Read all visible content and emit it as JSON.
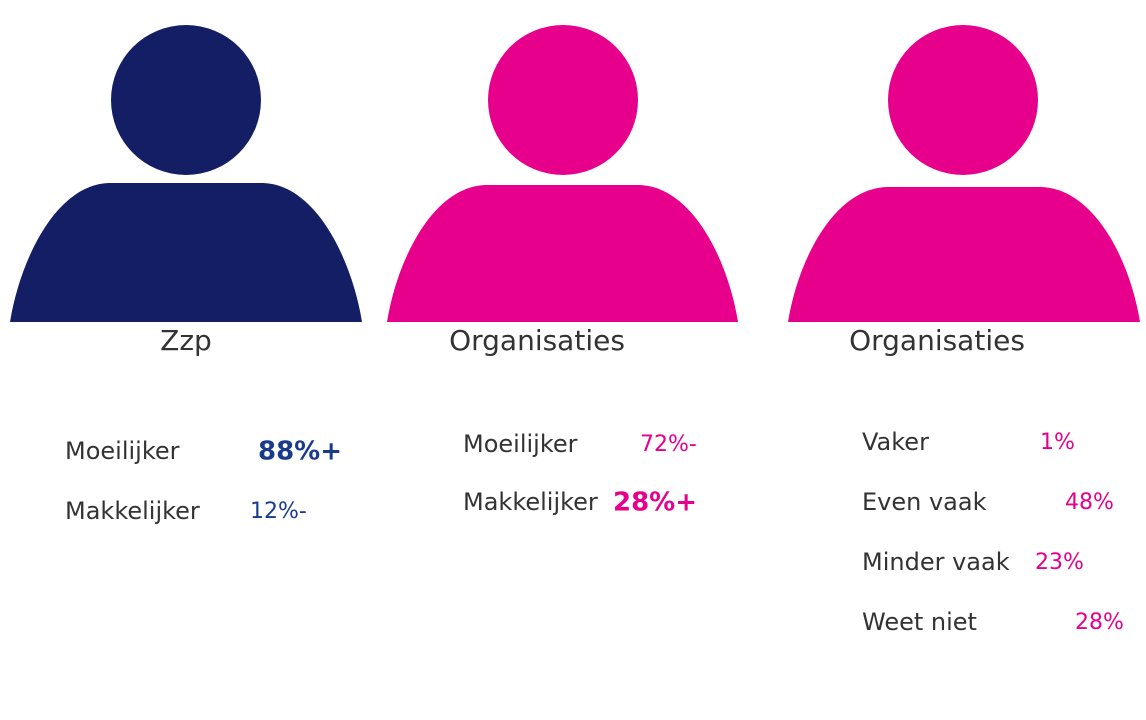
{
  "panels": [
    {
      "label": "Zzp",
      "color": "#141e64",
      "rows": [
        {
          "label": "Moeilijker",
          "value": "88%+",
          "bold": true
        },
        {
          "label": "Makkelijker",
          "value": "12%-",
          "bold": false
        }
      ]
    },
    {
      "label": "Organisaties",
      "color": "#e6008c",
      "rows": [
        {
          "label": "Moeilijker",
          "value": "72%-",
          "bold": false
        },
        {
          "label": "Makkelijker",
          "value": "28%+",
          "bold": true
        }
      ]
    },
    {
      "label": "Organisaties",
      "color": "#e6008c",
      "rows": [
        {
          "label": "Vaker",
          "value": "1%",
          "bold": false
        },
        {
          "label": "Even vaak",
          "value": "48%",
          "bold": false
        },
        {
          "label": "Minder vaak",
          "value": "23%",
          "bold": false
        },
        {
          "label": "Weet niet",
          "value": "28%",
          "bold": false
        }
      ]
    }
  ]
}
